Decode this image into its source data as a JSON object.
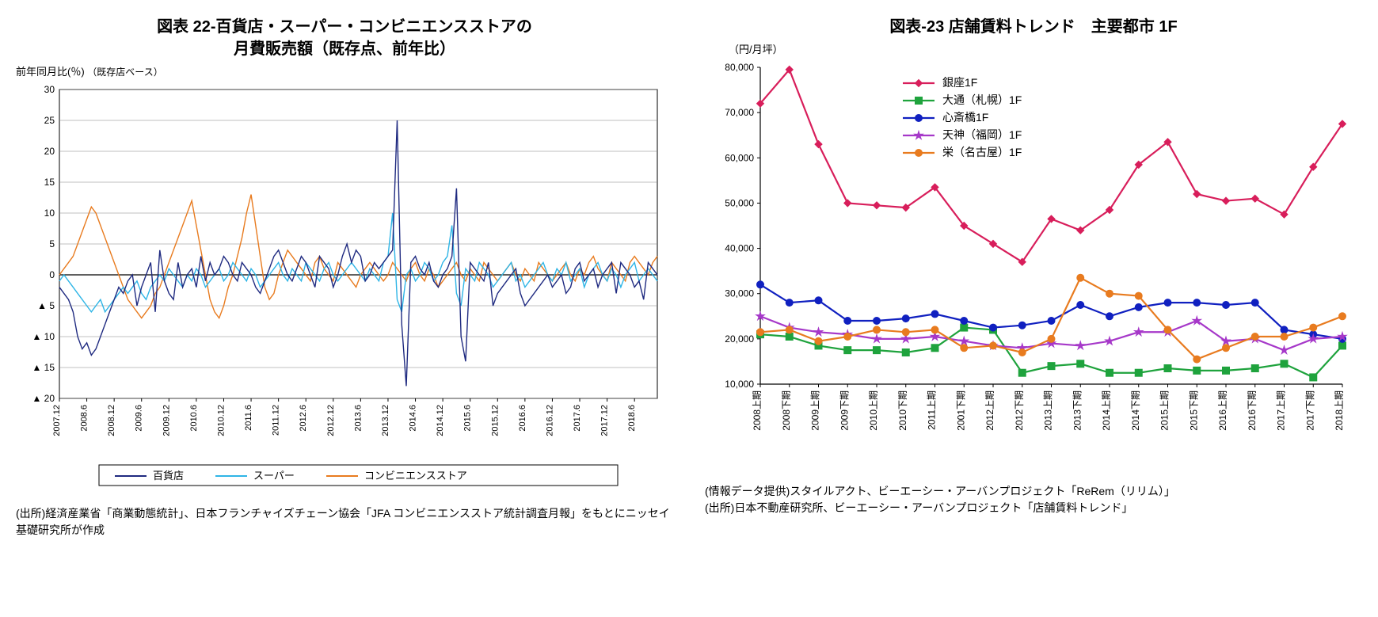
{
  "left": {
    "title_l1": "図表 22-百貨店・スーパー・コンビニエンスストアの",
    "title_l2": "月費販売額（既存点、前年比）",
    "yaxis_label": "前年同月比(％)",
    "yaxis_sub": "（既存店ベース）",
    "ylim": [
      -20,
      30
    ],
    "ytick_step": 5,
    "yticks_labels": [
      "▲ 20",
      "▲ 15",
      "▲ 10",
      "▲ 5",
      "0",
      "5",
      "10",
      "15",
      "20",
      "25",
      "30"
    ],
    "xlabels": [
      "2007.12",
      "2008.6",
      "2008.12",
      "2009.6",
      "2009.12",
      "2010.6",
      "2010.12",
      "2011.6",
      "2011.12",
      "2012.6",
      "2012.12",
      "2013.6",
      "2013.12",
      "2014.6",
      "2014.12",
      "2015.6",
      "2015.12",
      "2016.6",
      "2016.12",
      "2017.6",
      "2017.12",
      "2018.6"
    ],
    "series": {
      "dept": {
        "label": "百貨店",
        "color": "#1f2a80",
        "width": 1.4,
        "values": [
          -2,
          -3,
          -4,
          -6,
          -10,
          -12,
          -11,
          -13,
          -12,
          -10,
          -8,
          -6,
          -4,
          -2,
          -3,
          -1,
          0,
          -5,
          -2,
          0,
          2,
          -6,
          4,
          -1,
          -3,
          -4,
          2,
          -2,
          0,
          1,
          -2,
          3,
          -1,
          2,
          0,
          1,
          3,
          2,
          0,
          -1,
          2,
          1,
          0,
          -2,
          -3,
          -1,
          1,
          3,
          4,
          2,
          0,
          -1,
          1,
          3,
          2,
          0,
          -2,
          3,
          2,
          1,
          -2,
          0,
          3,
          5,
          2,
          4,
          3,
          -1,
          0,
          2,
          1,
          2,
          3,
          4,
          25,
          -8,
          -18,
          2,
          3,
          1,
          0,
          2,
          -1,
          -2,
          0,
          1,
          3,
          14,
          -10,
          -14,
          2,
          1,
          0,
          -1,
          2,
          -5,
          -3,
          -2,
          -1,
          0,
          1,
          -3,
          -5,
          -4,
          -3,
          -2,
          -1,
          0,
          -2,
          -1,
          0,
          -3,
          -2,
          1,
          2,
          -1,
          0,
          1,
          -2,
          0,
          1,
          2,
          -3,
          2,
          1,
          0,
          -2,
          -1,
          -4,
          2,
          1,
          0
        ]
      },
      "super": {
        "label": "スーパー",
        "color": "#2fb5e6",
        "width": 1.4,
        "values": [
          -1,
          0,
          -1,
          -2,
          -3,
          -4,
          -5,
          -6,
          -5,
          -4,
          -6,
          -5,
          -4,
          -3,
          -2,
          -3,
          -2,
          -1,
          -3,
          -4,
          -2,
          -1,
          0,
          -1,
          1,
          0,
          -1,
          -2,
          0,
          -1,
          1,
          0,
          -2,
          -1,
          0,
          1,
          -1,
          0,
          2,
          1,
          0,
          -1,
          1,
          0,
          -2,
          -1,
          0,
          1,
          2,
          0,
          -1,
          1,
          0,
          -1,
          2,
          1,
          0,
          -1,
          1,
          2,
          0,
          -1,
          0,
          1,
          2,
          1,
          0,
          -1,
          1,
          0,
          -1,
          2,
          3,
          10,
          -4,
          -6,
          0,
          1,
          -1,
          0,
          2,
          1,
          -1,
          0,
          2,
          3,
          8,
          -3,
          -5,
          1,
          0,
          -1,
          2,
          1,
          0,
          -2,
          -1,
          0,
          1,
          2,
          -1,
          0,
          -2,
          -1,
          0,
          1,
          2,
          0,
          -1,
          1,
          0,
          2,
          -1,
          0,
          1,
          -2,
          0,
          1,
          2,
          0,
          -1,
          1,
          0,
          -2,
          0,
          1,
          2,
          -1,
          0,
          1,
          0,
          -1
        ]
      },
      "cvs": {
        "label": "コンビニエンスストア",
        "color": "#e87b1f",
        "width": 1.4,
        "values": [
          0,
          1,
          2,
          3,
          5,
          7,
          9,
          11,
          10,
          8,
          6,
          4,
          2,
          0,
          -2,
          -4,
          -5,
          -6,
          -7,
          -6,
          -5,
          -3,
          -2,
          0,
          2,
          4,
          6,
          8,
          10,
          12,
          8,
          4,
          0,
          -4,
          -6,
          -7,
          -5,
          -2,
          0,
          3,
          6,
          10,
          13,
          8,
          3,
          -2,
          -4,
          -3,
          0,
          2,
          4,
          3,
          2,
          1,
          0,
          -1,
          2,
          3,
          1,
          0,
          -1,
          2,
          1,
          0,
          -1,
          -2,
          0,
          1,
          2,
          1,
          0,
          -1,
          0,
          2,
          1,
          0,
          -1,
          1,
          2,
          0,
          -1,
          1,
          0,
          -2,
          -1,
          0,
          1,
          2,
          0,
          -1,
          1,
          0,
          -1,
          2,
          1,
          0,
          -1,
          0,
          1,
          2,
          0,
          -1,
          1,
          0,
          -1,
          2,
          1,
          0,
          -1,
          0,
          1,
          2,
          0,
          -1,
          1,
          0,
          2,
          3,
          1,
          0,
          -1,
          2,
          1,
          0,
          -1,
          2,
          3,
          2,
          1,
          0,
          2,
          3
        ]
      }
    },
    "legend_border": "#000000",
    "source": "(出所)経済産業省「商業動態統計」、日本フランチャイズチェーン協会「JFA コンビニエンスストア統計調査月報」をもとにニッセイ基礎研究所が作成"
  },
  "right": {
    "title": "図表-23 店舗賃料トレンド　主要都市 1F",
    "yaxis_label": "（円/月坪）",
    "ylim": [
      10000,
      80000
    ],
    "ytick_step": 10000,
    "xlabels": [
      "2008上期",
      "2008下期",
      "2009上期",
      "2009下期",
      "2010上期",
      "2010下期",
      "2011上期",
      "2001下期",
      "2012上期",
      "2012下期",
      "2013上期",
      "2013下期",
      "2014上期",
      "2014下期",
      "2015上期",
      "2015下期",
      "2016上期",
      "2016下期",
      "2017上期",
      "2017下期",
      "2018上期"
    ],
    "series": {
      "ginza": {
        "label": "銀座1F",
        "color": "#d81e5b",
        "marker": "diamond",
        "width": 2.2,
        "values": [
          72000,
          79500,
          63000,
          50000,
          49500,
          49000,
          53500,
          45000,
          41000,
          37000,
          46500,
          44000,
          48500,
          58500,
          63500,
          52000,
          50500,
          51000,
          47500,
          58000,
          67500
        ]
      },
      "odori": {
        "label": "大通（札幌）1F",
        "color": "#1fa33d",
        "marker": "square",
        "width": 2.2,
        "values": [
          21000,
          20500,
          18500,
          17500,
          17500,
          17000,
          18000,
          22500,
          22000,
          12500,
          14000,
          14500,
          12500,
          12500,
          13500,
          13000,
          13000,
          13500,
          14500,
          11500,
          18500
        ]
      },
      "shinsai": {
        "label": "心斎橋1F",
        "color": "#1020c0",
        "marker": "circle",
        "width": 2.2,
        "values": [
          32000,
          28000,
          28500,
          24000,
          24000,
          24500,
          25500,
          24000,
          22500,
          23000,
          24000,
          27500,
          25000,
          27000,
          28000,
          28000,
          27500,
          28000,
          22000,
          21000,
          20000
        ]
      },
      "tenjin": {
        "label": "天神（福岡）1F",
        "color": "#a638c9",
        "marker": "star",
        "width": 2.2,
        "values": [
          25000,
          22500,
          21500,
          21000,
          20000,
          20000,
          20500,
          19500,
          18500,
          18000,
          19000,
          18500,
          19500,
          21500,
          21500,
          24000,
          19500,
          20000,
          17500,
          20000,
          20500
        ]
      },
      "sakae": {
        "label": "栄（名古屋）1F",
        "color": "#e87b1f",
        "marker": "circle",
        "width": 2.2,
        "values": [
          21500,
          22000,
          19500,
          20500,
          22000,
          21500,
          22000,
          18000,
          18500,
          17000,
          20000,
          33500,
          30000,
          29500,
          22000,
          15500,
          18000,
          20500,
          20500,
          22500,
          25000
        ]
      }
    },
    "info": "(情報データ提供)スタイルアクト、ビーエーシー・アーバンプロジェクト「ReRem（リリム）」",
    "source": "(出所)日本不動産研究所、ビーエーシー・アーバンプロジェクト「店舗賃料トレンド」"
  },
  "style": {
    "axis_color": "#000000",
    "grid_color": "#808080",
    "bg": "#ffffff"
  }
}
